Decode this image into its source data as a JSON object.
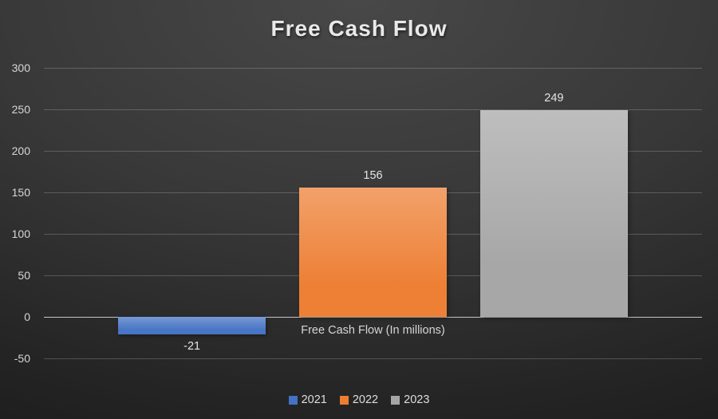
{
  "title": "Free Cash Flow",
  "axis_label": "Free Cash Flow (In millions)",
  "legend": [
    {
      "label": "2021",
      "color": "#4472C4"
    },
    {
      "label": "2022",
      "color": "#ED7D31"
    },
    {
      "label": "2023",
      "color": "#A5A5A5"
    }
  ],
  "chart_data": {
    "type": "bar",
    "title": "Free Cash Flow",
    "categories": [
      "2021",
      "2022",
      "2023"
    ],
    "values": [
      -21,
      156,
      249
    ],
    "data_labels": [
      "-21",
      "156",
      "249"
    ],
    "colors": [
      "#4472C4",
      "#ED7D31",
      "#A5A5A5"
    ],
    "xlabel": "Free Cash Flow (In millions)",
    "ylabel": "",
    "ylim": [
      -50,
      300
    ],
    "ytick_step": 50,
    "yticks": [
      300,
      250,
      200,
      150,
      100,
      50,
      0,
      -50
    ],
    "grid": true,
    "legend_position": "bottom",
    "background": "dark-gray-gradient",
    "text_color": "#d9d9d9"
  }
}
